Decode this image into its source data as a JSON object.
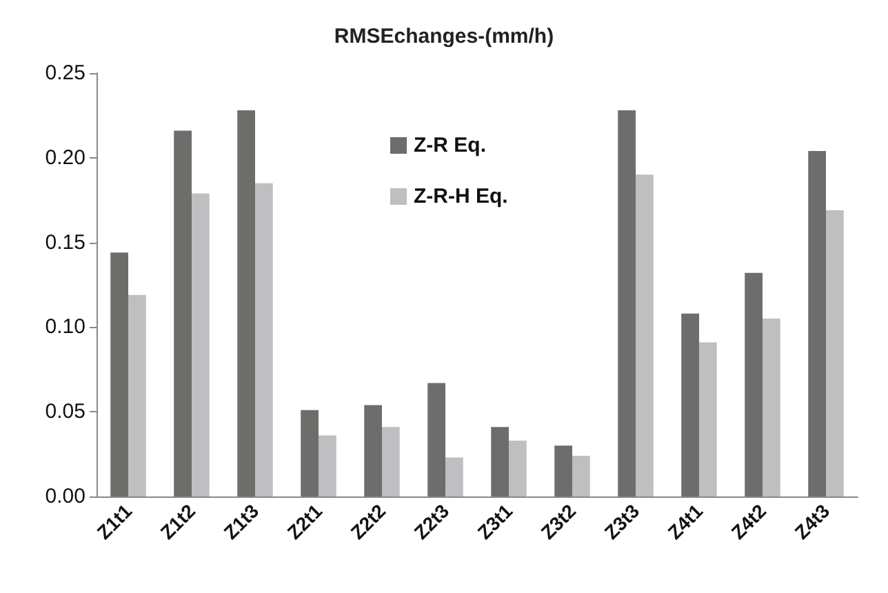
{
  "chart_data": {
    "type": "bar",
    "title": "RMSEchanges-(mm/h)",
    "categories": [
      "Z1t1",
      "Z1t2",
      "Z1t3",
      "Z2t1",
      "Z2t2",
      "Z2t3",
      "Z3t1",
      "Z3t2",
      "Z3t3",
      "Z4t1",
      "Z4t2",
      "Z4t3"
    ],
    "series": [
      {
        "name": "Z-R Eq.",
        "color": "#6d6d6b",
        "values": [
          0.144,
          0.216,
          0.228,
          0.051,
          0.054,
          0.067,
          0.041,
          0.03,
          0.228,
          0.108,
          0.132,
          0.204
        ]
      },
      {
        "name": "Z-R-H Eq.",
        "color": "#bfbfc1",
        "values": [
          0.119,
          0.179,
          0.185,
          0.036,
          0.041,
          0.023,
          0.033,
          0.024,
          0.19,
          0.091,
          0.105,
          0.169
        ]
      }
    ],
    "ylim": [
      0,
      0.25
    ],
    "yticks": [
      {
        "value": 0,
        "label": "0.00"
      },
      0.05,
      {
        "value": 0.1,
        "label": "0.10"
      },
      0.15,
      {
        "value": 0.2,
        "label": "0.20"
      },
      0.25
    ],
    "grid": false,
    "legend": "top"
  }
}
